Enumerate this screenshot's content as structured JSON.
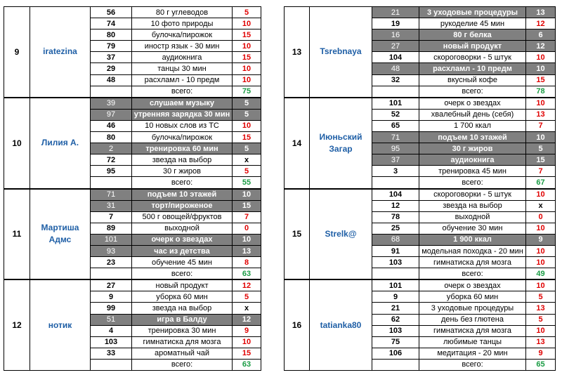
{
  "total_label": "всего:",
  "left": [
    {
      "idx": "9",
      "name": "iratezina",
      "total": "75",
      "rows": [
        {
          "num": "56",
          "act": "80 г углеводов",
          "pts": "5",
          "hl": false
        },
        {
          "num": "74",
          "act": "10 фото природы",
          "pts": "10",
          "hl": false
        },
        {
          "num": "80",
          "act": "булочка/пирожок",
          "pts": "15",
          "hl": false
        },
        {
          "num": "79",
          "act": "иностр язык - 30 мин",
          "pts": "10",
          "hl": false
        },
        {
          "num": "37",
          "act": "аудиокнига",
          "pts": "15",
          "hl": false
        },
        {
          "num": "29",
          "act": "танцы 30 мин",
          "pts": "10",
          "hl": false
        },
        {
          "num": "48",
          "act": "расхламл - 10 предм",
          "pts": "10",
          "hl": false
        }
      ]
    },
    {
      "idx": "10",
      "name": "Лилия А.",
      "total": "55",
      "rows": [
        {
          "num": "39",
          "act": "слушаем музыку",
          "pts": "5",
          "hl": true
        },
        {
          "num": "97",
          "act": "утренняя зарядка 30 мин",
          "pts": "5",
          "hl": true
        },
        {
          "num": "46",
          "act": "10 новых слов из ТС",
          "pts": "10",
          "hl": false
        },
        {
          "num": "80",
          "act": "булочка/пирожок",
          "pts": "15",
          "hl": false
        },
        {
          "num": "2",
          "act": "тренировка 60 мин",
          "pts": "5",
          "hl": true
        },
        {
          "num": "72",
          "act": "звезда на выбор",
          "pts": "x",
          "hl": false
        },
        {
          "num": "95",
          "act": "30 г жиров",
          "pts": "5",
          "hl": false
        }
      ]
    },
    {
      "idx": "11",
      "name": "Мартиша Адмс",
      "total": "63",
      "rows": [
        {
          "num": "71",
          "act": "подъем 10 этажей",
          "pts": "10",
          "hl": true
        },
        {
          "num": "31",
          "act": "торт/пироженое",
          "pts": "15",
          "hl": true
        },
        {
          "num": "7",
          "act": "500 г овощей/фруктов",
          "pts": "7",
          "hl": false
        },
        {
          "num": "89",
          "act": "выходной",
          "pts": "0",
          "hl": false
        },
        {
          "num": "101",
          "act": "очерк о звездах",
          "pts": "10",
          "hl": true
        },
        {
          "num": "93",
          "act": "час из детства",
          "pts": "13",
          "hl": true
        },
        {
          "num": "23",
          "act": "обучение 45 мин",
          "pts": "8",
          "hl": false
        }
      ]
    },
    {
      "idx": "12",
      "name": "нотик",
      "total": "63",
      "rows": [
        {
          "num": "27",
          "act": "новый продукт",
          "pts": "12",
          "hl": false
        },
        {
          "num": "9",
          "act": "уборка 60 мин",
          "pts": "5",
          "hl": false
        },
        {
          "num": "99",
          "act": "звезда на выбор",
          "pts": "x",
          "hl": false
        },
        {
          "num": "51",
          "act": "игра в Балду",
          "pts": "12",
          "hl": true
        },
        {
          "num": "4",
          "act": "тренировка 30 мин",
          "pts": "9",
          "hl": false
        },
        {
          "num": "103",
          "act": "гимнатиска для мозга",
          "pts": "10",
          "hl": false
        },
        {
          "num": "33",
          "act": "ароматный чай",
          "pts": "15",
          "hl": false
        }
      ]
    }
  ],
  "right": [
    {
      "idx": "13",
      "name": "Tsrebnaya",
      "total": "78",
      "rows": [
        {
          "num": "21",
          "act": "3 уходовые процедуры",
          "pts": "13",
          "hl": true
        },
        {
          "num": "19",
          "act": "рукоделие 45 мин",
          "pts": "12",
          "hl": false
        },
        {
          "num": "16",
          "act": "80 г белка",
          "pts": "6",
          "hl": true
        },
        {
          "num": "27",
          "act": "новый продукт",
          "pts": "12",
          "hl": true
        },
        {
          "num": "104",
          "act": "скороговорки - 5 штук",
          "pts": "10",
          "hl": false
        },
        {
          "num": "48",
          "act": "расхламл - 10 предм",
          "pts": "10",
          "hl": true
        },
        {
          "num": "32",
          "act": "вкусный кофе",
          "pts": "15",
          "hl": false
        }
      ]
    },
    {
      "idx": "14",
      "name": "Июньский Загар",
      "total": "67",
      "rows": [
        {
          "num": "101",
          "act": "очерк о звездах",
          "pts": "10",
          "hl": false
        },
        {
          "num": "52",
          "act": "хвалебный день (себя)",
          "pts": "13",
          "hl": false
        },
        {
          "num": "65",
          "act": "1 700 ккал",
          "pts": "7",
          "hl": false
        },
        {
          "num": "71",
          "act": "подъем 10 этажей",
          "pts": "10",
          "hl": true
        },
        {
          "num": "95",
          "act": "30 г жиров",
          "pts": "5",
          "hl": true
        },
        {
          "num": "37",
          "act": "аудиокнига",
          "pts": "15",
          "hl": true
        },
        {
          "num": "3",
          "act": "тренировка 45 мин",
          "pts": "7",
          "hl": false
        }
      ]
    },
    {
      "idx": "15",
      "name": "Strelk@",
      "total": "49",
      "rows": [
        {
          "num": "104",
          "act": "скороговорки - 5 штук",
          "pts": "10",
          "hl": false
        },
        {
          "num": "12",
          "act": "звезда на выбор",
          "pts": "x",
          "hl": false
        },
        {
          "num": "78",
          "act": "выходной",
          "pts": "0",
          "hl": false
        },
        {
          "num": "25",
          "act": "обучение 30 мин",
          "pts": "10",
          "hl": false
        },
        {
          "num": "68",
          "act": "1 900 ккал",
          "pts": "9",
          "hl": true
        },
        {
          "num": "91",
          "act": "модельная походка - 20 мин",
          "pts": "10",
          "hl": false
        },
        {
          "num": "103",
          "act": "гимнатиска для мозга",
          "pts": "10",
          "hl": false
        }
      ]
    },
    {
      "idx": "16",
      "name": "tatianka80",
      "total": "65",
      "rows": [
        {
          "num": "101",
          "act": "очерк о звездах",
          "pts": "10",
          "hl": false
        },
        {
          "num": "9",
          "act": "уборка 60 мин",
          "pts": "5",
          "hl": false
        },
        {
          "num": "21",
          "act": "3 уходовые процедуры",
          "pts": "13",
          "hl": false
        },
        {
          "num": "62",
          "act": "день без глютена",
          "pts": "5",
          "hl": false
        },
        {
          "num": "103",
          "act": "гимнатиска для мозга",
          "pts": "10",
          "hl": false
        },
        {
          "num": "75",
          "act": "любимые танцы",
          "pts": "13",
          "hl": false
        },
        {
          "num": "106",
          "act": "медитация - 20 мин",
          "pts": "9",
          "hl": false
        }
      ]
    }
  ]
}
